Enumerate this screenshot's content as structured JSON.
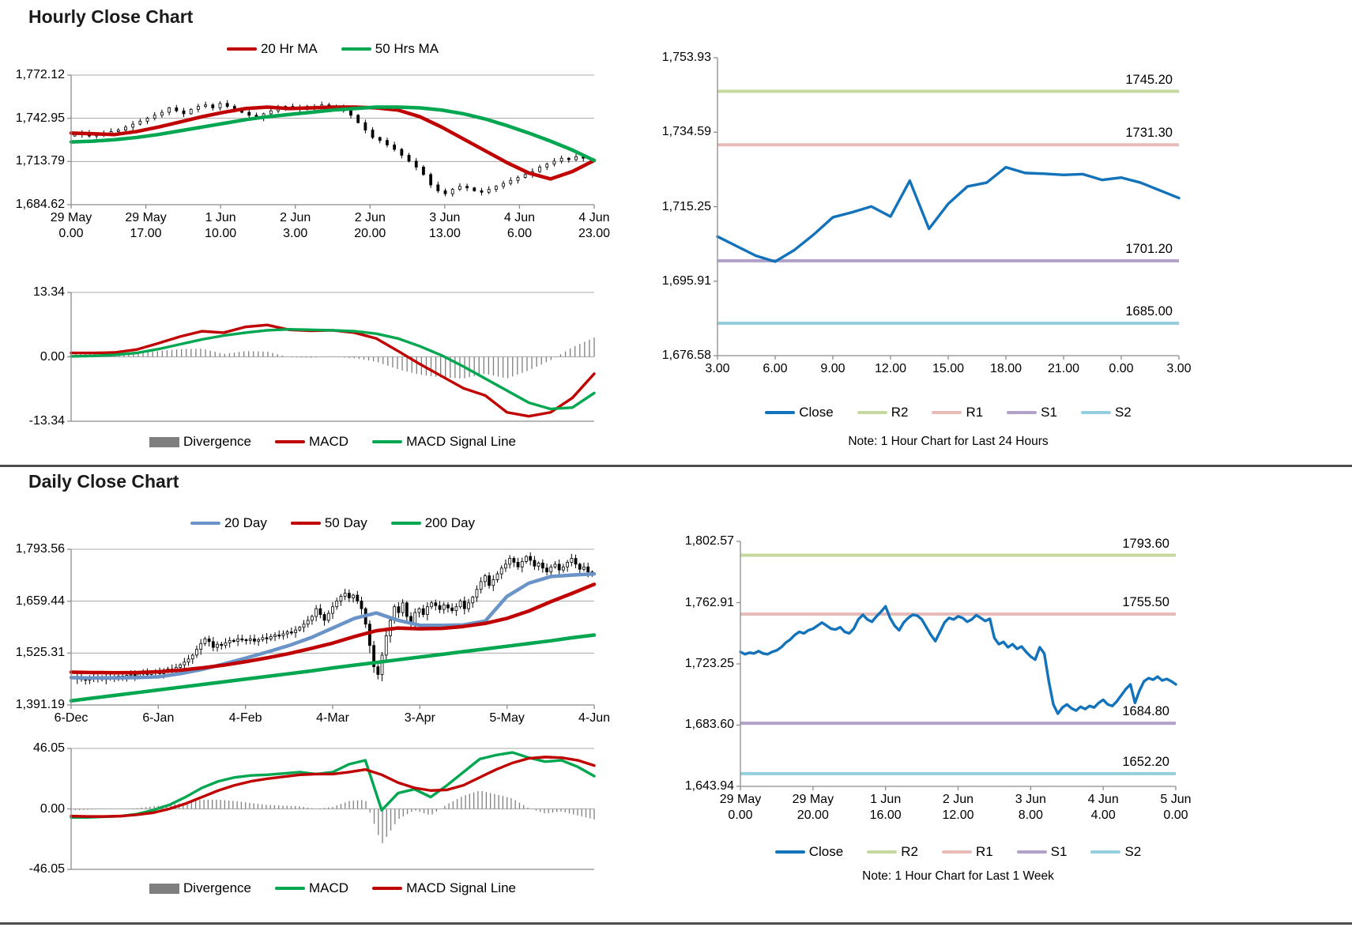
{
  "sections": {
    "hourly": {
      "title": "Hourly Close Chart"
    },
    "daily": {
      "title": "Daily Close Chart"
    }
  },
  "colors": {
    "red_line": "#C00000",
    "green_line": "#00A650",
    "steel_blue": "#6A93C8",
    "close_blue": "#1272BA",
    "r2": "#C5D89F",
    "r1": "#E8BBB8",
    "s1": "#B2A1C9",
    "s2": "#95CEDE",
    "divergence_gray": "#7F7F7F",
    "grid": "#A8A8A8",
    "axis": "#8C8C8C"
  },
  "chart_data": [
    {
      "id": "hourly-price",
      "type": "candlestick",
      "ylim": [
        1684.62,
        1772.12
      ],
      "ytick_labels": [
        "1,772.12",
        "1,742.95",
        "1,713.79",
        "1,684.62"
      ],
      "ytick_values": [
        1772.12,
        1742.95,
        1713.79,
        1684.62
      ],
      "xtick_labels": [
        [
          "29 May",
          "0.00"
        ],
        [
          "29 May",
          "17.00"
        ],
        [
          "1 Jun",
          "10.00"
        ],
        [
          "2 Jun",
          "3.00"
        ],
        [
          "2 Jun",
          "20.00"
        ],
        [
          "3 Jun",
          "13.00"
        ],
        [
          "4 Jun",
          "6.00"
        ],
        [
          "4 Jun",
          "23.00"
        ]
      ],
      "legend": [
        {
          "label": "20 Hr MA",
          "color": "#C00000",
          "type": "line"
        },
        {
          "label": "50 Hrs MA",
          "color": "#00A650",
          "type": "line"
        }
      ],
      "wick_amp": 2.2,
      "wick_body_factor": 0,
      "series": {
        "close": [
          1732,
          1733,
          1731,
          1732,
          1733,
          1734,
          1735,
          1737,
          1739,
          1741,
          1743,
          1745,
          1747,
          1750,
          1748,
          1746,
          1749,
          1751,
          1752,
          1750,
          1753,
          1751,
          1749,
          1747,
          1745,
          1743,
          1746,
          1748,
          1750,
          1751,
          1750,
          1749,
          1751,
          1750,
          1752,
          1751,
          1750,
          1748,
          1745,
          1740,
          1735,
          1730,
          1728,
          1725,
          1722,
          1718,
          1714,
          1710,
          1705,
          1698,
          1694,
          1692,
          1695,
          1697,
          1696,
          1694,
          1693,
          1695,
          1697,
          1699,
          1701,
          1703,
          1705,
          1707,
          1710,
          1712,
          1714,
          1716,
          1715,
          1717,
          1716,
          1715
        ],
        "ma20": [
          1733,
          1732.5,
          1732,
          1734,
          1737,
          1740.5,
          1744,
          1747,
          1749.5,
          1750.5,
          1749.5,
          1750,
          1750.5,
          1750.5,
          1750,
          1748.5,
          1744,
          1737,
          1729,
          1721,
          1713,
          1706,
          1702,
          1707,
          1714.5
        ],
        "ma50": [
          1727,
          1727.5,
          1728.5,
          1730,
          1732,
          1734.5,
          1737,
          1739.5,
          1742,
          1744,
          1745.5,
          1747,
          1748.5,
          1749.5,
          1750.5,
          1750.5,
          1750,
          1748.5,
          1746,
          1742.5,
          1738,
          1733,
          1727.5,
          1721.5,
          1714.5
        ]
      },
      "lines": [
        {
          "key": "ma20",
          "color": "#C00000",
          "width": 4.5
        },
        {
          "key": "ma50",
          "color": "#00A650",
          "width": 4.5
        }
      ]
    },
    {
      "id": "hourly-macd",
      "type": "macd",
      "ylim": [
        -13.34,
        13.34
      ],
      "ytick_labels": [
        "13.34",
        "0.00",
        "-13.34"
      ],
      "ytick_values": [
        13.34,
        0,
        -13.34
      ],
      "bar_count": 110,
      "divergence_color": "#7F7F7F",
      "series": {
        "macd": [
          0.8,
          0.8,
          0.9,
          1.5,
          2.8,
          4.2,
          5.3,
          5.0,
          6.2,
          6.6,
          5.6,
          5.4,
          5.5,
          5.0,
          3.8,
          1.2,
          -1.5,
          -4.0,
          -6.5,
          -8.0,
          -11.5,
          -12.3,
          -11.5,
          -8.5,
          -3.5
        ],
        "signal": [
          0.1,
          0.2,
          0.4,
          0.8,
          1.6,
          2.6,
          3.6,
          4.4,
          5.0,
          5.5,
          5.7,
          5.6,
          5.5,
          5.3,
          4.8,
          3.8,
          2.2,
          0.3,
          -2.0,
          -4.5,
          -7.0,
          -9.5,
          -10.8,
          -10.5,
          -7.5
        ]
      },
      "lines": [
        {
          "key": "macd",
          "color": "#C00000",
          "width": 3.4
        },
        {
          "key": "signal",
          "color": "#00A650",
          "width": 3.4
        }
      ],
      "legend": [
        {
          "label": "Divergence",
          "color": "#7F7F7F",
          "type": "box"
        },
        {
          "label": "MACD",
          "color": "#C00000",
          "type": "line"
        },
        {
          "label": "MACD Signal Line",
          "color": "#00A650",
          "type": "line"
        }
      ]
    },
    {
      "id": "hourly-pivot",
      "type": "line",
      "ylim": [
        1676.58,
        1753.93
      ],
      "ytick_labels": [
        "1,753.93",
        "1,734.59",
        "1,715.25",
        "1,695.91",
        "1,676.58"
      ],
      "ytick_values": [
        1753.93,
        1734.59,
        1715.25,
        1695.91,
        1676.58
      ],
      "xtick_labels": [
        "3.00",
        "6.00",
        "9.00",
        "12.00",
        "15.00",
        "18.00",
        "21.00",
        "0.00",
        "3.00"
      ],
      "levels": [
        {
          "name": "R2",
          "value": 1745.2,
          "label": "1745.20",
          "color": "#C5D89F"
        },
        {
          "name": "R1",
          "value": 1731.3,
          "label": "1731.30",
          "color": "#E8BBB8"
        },
        {
          "name": "S1",
          "value": 1701.2,
          "label": "1701.20",
          "color": "#B2A1C9"
        },
        {
          "name": "S2",
          "value": 1685.0,
          "label": "1685.00",
          "color": "#95CEDE"
        }
      ],
      "series": {
        "close": [
          1707.5,
          1705,
          1702.5,
          1701.0,
          1704,
          1708,
          1712.5,
          1713.8,
          1715.3,
          1712.7,
          1722,
          1709.5,
          1716,
          1720.5,
          1721.5,
          1725.5,
          1724,
          1723.8,
          1723.5,
          1723.7,
          1722.2,
          1722.8,
          1721.5,
          1719.5,
          1717.5
        ]
      },
      "lines": [
        {
          "key": "close",
          "color": "#1272BA",
          "width": 3.4
        }
      ],
      "legend": [
        {
          "label": "Close",
          "color": "#1272BA",
          "type": "line"
        },
        {
          "label": "R2",
          "color": "#C5D89F",
          "type": "line"
        },
        {
          "label": "R1",
          "color": "#E8BBB8",
          "type": "line"
        },
        {
          "label": "S1",
          "color": "#B2A1C9",
          "type": "line"
        },
        {
          "label": "S2",
          "color": "#95CEDE",
          "type": "line"
        }
      ],
      "note": "Note: 1 Hour Chart for Last 24 Hours"
    },
    {
      "id": "daily-price",
      "type": "candlestick",
      "ylim": [
        1391.19,
        1793.56
      ],
      "ytick_labels": [
        "1,793.56",
        "1,659.44",
        "1,525.31",
        "1,391.19"
      ],
      "ytick_values": [
        1793.56,
        1659.44,
        1525.31,
        1391.19
      ],
      "xtick_labels": [
        "6-Dec",
        "6-Jan",
        "4-Feb",
        "4-Mar",
        "3-Apr",
        "5-May",
        "4-Jun"
      ],
      "legend": [
        {
          "label": "20 Day",
          "color": "#6A93C8",
          "type": "line"
        },
        {
          "label": "50 Day",
          "color": "#C00000",
          "type": "line"
        },
        {
          "label": "200 Day",
          "color": "#00A650",
          "type": "line"
        }
      ],
      "wick_amp": 12,
      "wick_body_factor": 0.15,
      "series": {
        "close": [
          1462,
          1458,
          1460,
          1455,
          1459,
          1463,
          1461,
          1457,
          1460,
          1464,
          1462,
          1466,
          1463,
          1468,
          1470,
          1466,
          1471,
          1474,
          1470,
          1473,
          1476,
          1472,
          1478,
          1484,
          1480,
          1488,
          1495,
          1502,
          1510,
          1520,
          1535,
          1550,
          1562,
          1555,
          1540,
          1548,
          1545,
          1552,
          1558,
          1556,
          1562,
          1560,
          1558,
          1562,
          1556,
          1560,
          1565,
          1562,
          1568,
          1572,
          1570,
          1575,
          1580,
          1578,
          1585,
          1592,
          1600,
          1610,
          1620,
          1640,
          1625,
          1610,
          1628,
          1645,
          1660,
          1672,
          1680,
          1668,
          1675,
          1660,
          1640,
          1600,
          1545,
          1490,
          1470,
          1520,
          1570,
          1610,
          1645,
          1630,
          1655,
          1620,
          1600,
          1630,
          1640,
          1625,
          1645,
          1655,
          1648,
          1638,
          1650,
          1642,
          1635,
          1645,
          1660,
          1640,
          1655,
          1670,
          1690,
          1710,
          1725,
          1700,
          1715,
          1730,
          1745,
          1755,
          1770,
          1760,
          1748,
          1762,
          1775,
          1765,
          1750,
          1758,
          1745,
          1735,
          1748,
          1755,
          1740,
          1748,
          1760,
          1770,
          1755,
          1742,
          1748,
          1735,
          1728
        ],
        "ma20": [
          1462,
          1461,
          1461.5,
          1462,
          1464,
          1472,
          1483,
          1497,
          1512,
          1528,
          1545,
          1565,
          1590,
          1615,
          1629,
          1610,
          1597,
          1597,
          1598,
          1608,
          1672,
          1706,
          1723,
          1727,
          1730
        ],
        "ma50": [
          1476,
          1475,
          1474.5,
          1475,
          1477,
          1481,
          1487,
          1494,
          1503,
          1513,
          1524,
          1537,
          1551,
          1568,
          1583,
          1590,
          1588,
          1589,
          1594,
          1602,
          1615,
          1634,
          1658,
          1680,
          1703
        ],
        "ma200": [
          1402,
          1409,
          1416,
          1423,
          1430,
          1437,
          1444,
          1451,
          1458,
          1465,
          1472,
          1479,
          1487,
          1494,
          1501,
          1508,
          1515,
          1522,
          1529,
          1536,
          1543,
          1550,
          1557,
          1565,
          1572
        ]
      },
      "lines": [
        {
          "key": "ma20",
          "color": "#6A93C8",
          "width": 4.5
        },
        {
          "key": "ma50",
          "color": "#C00000",
          "width": 4.5
        },
        {
          "key": "ma200",
          "color": "#00A650",
          "width": 4.5
        }
      ]
    },
    {
      "id": "daily-macd",
      "type": "macd",
      "ylim": [
        -46.05,
        46.05
      ],
      "ytick_labels": [
        "46.05",
        "0.00",
        "-46.05"
      ],
      "ytick_values": [
        46.05,
        0,
        -46.05
      ],
      "bar_count": 127,
      "divergence_color": "#7F7F7F",
      "series": {
        "macd": [
          -6.5,
          -6.5,
          -6,
          -5.5,
          -4,
          -1,
          3,
          9,
          16,
          21,
          24,
          25.5,
          26,
          27,
          28,
          26.5,
          28,
          34,
          37,
          -1,
          12,
          15,
          9,
          18,
          28,
          38,
          41,
          43,
          39,
          36,
          37,
          32,
          25
        ],
        "signal": [
          -5.5,
          -5.8,
          -5.8,
          -5.5,
          -4.5,
          -3,
          0,
          4,
          9,
          14,
          18,
          21,
          23,
          24.5,
          26,
          26.5,
          26.5,
          28,
          30,
          26,
          20,
          16,
          14,
          14.5,
          18,
          24,
          30,
          35,
          38.5,
          39.5,
          39,
          37,
          33
        ]
      },
      "lines": [
        {
          "key": "macd",
          "color": "#00A650",
          "width": 3.4
        },
        {
          "key": "signal",
          "color": "#C00000",
          "width": 3.4
        }
      ],
      "legend": [
        {
          "label": "Divergence",
          "color": "#7F7F7F",
          "type": "box"
        },
        {
          "label": "MACD",
          "color": "#00A650",
          "type": "line"
        },
        {
          "label": "MACD Signal Line",
          "color": "#C00000",
          "type": "line"
        }
      ]
    },
    {
      "id": "daily-pivot",
      "type": "line",
      "ylim": [
        1643.94,
        1802.57
      ],
      "ytick_labels": [
        "1,802.57",
        "1,762.91",
        "1,723.25",
        "1,683.60",
        "1,643.94"
      ],
      "ytick_values": [
        1802.57,
        1762.91,
        1723.25,
        1683.6,
        1643.94
      ],
      "xtick_labels": [
        [
          "29 May",
          "0.00"
        ],
        [
          "29 May",
          "20.00"
        ],
        [
          "1 Jun",
          "16.00"
        ],
        [
          "2 Jun",
          "12.00"
        ],
        [
          "3 Jun",
          "8.00"
        ],
        [
          "4 Jun",
          "4.00"
        ],
        [
          "5 Jun",
          "0.00"
        ]
      ],
      "levels": [
        {
          "name": "R2",
          "value": 1793.6,
          "label": "1793.60",
          "color": "#C5D89F"
        },
        {
          "name": "R1",
          "value": 1755.5,
          "label": "1755.50",
          "color": "#E8BBB8"
        },
        {
          "name": "S1",
          "value": 1684.8,
          "label": "1684.80",
          "color": "#B2A1C9"
        },
        {
          "name": "S2",
          "value": 1652.2,
          "label": "1652.20",
          "color": "#95CEDE"
        }
      ],
      "series": {
        "close": [
          1731,
          1729.5,
          1730.5,
          1730,
          1731.5,
          1730,
          1729.5,
          1731,
          1732,
          1734,
          1737,
          1739,
          1742,
          1744,
          1743,
          1745,
          1746,
          1748,
          1750,
          1748,
          1746,
          1745.5,
          1747,
          1744,
          1743,
          1746,
          1752,
          1755,
          1752,
          1750.5,
          1754,
          1757,
          1760.5,
          1753,
          1748,
          1745,
          1750,
          1753,
          1755,
          1754.5,
          1752,
          1747,
          1742,
          1738,
          1744,
          1750,
          1753,
          1752,
          1754,
          1753,
          1750.5,
          1752,
          1754.8,
          1753,
          1751,
          1752.5,
          1740,
          1736,
          1737.5,
          1734,
          1736,
          1733,
          1734.5,
          1731,
          1728,
          1726,
          1734,
          1730,
          1712,
          1697,
          1691,
          1695,
          1697,
          1694.5,
          1693,
          1695.5,
          1694,
          1696,
          1695,
          1698,
          1700,
          1697,
          1696,
          1699,
          1703,
          1707,
          1710,
          1698,
          1706,
          1712,
          1714,
          1713,
          1715,
          1712.5,
          1713.5,
          1712,
          1710
        ]
      },
      "lines": [
        {
          "key": "close",
          "color": "#1272BA",
          "width": 3.4
        }
      ],
      "legend": [
        {
          "label": "Close",
          "color": "#1272BA",
          "type": "line"
        },
        {
          "label": "R2",
          "color": "#C5D89F",
          "type": "line"
        },
        {
          "label": "R1",
          "color": "#E8BBB8",
          "type": "line"
        },
        {
          "label": "S1",
          "color": "#B2A1C9",
          "type": "line"
        },
        {
          "label": "S2",
          "color": "#95CEDE",
          "type": "line"
        }
      ],
      "note": "Note: 1 Hour Chart for Last 1 Week"
    }
  ]
}
